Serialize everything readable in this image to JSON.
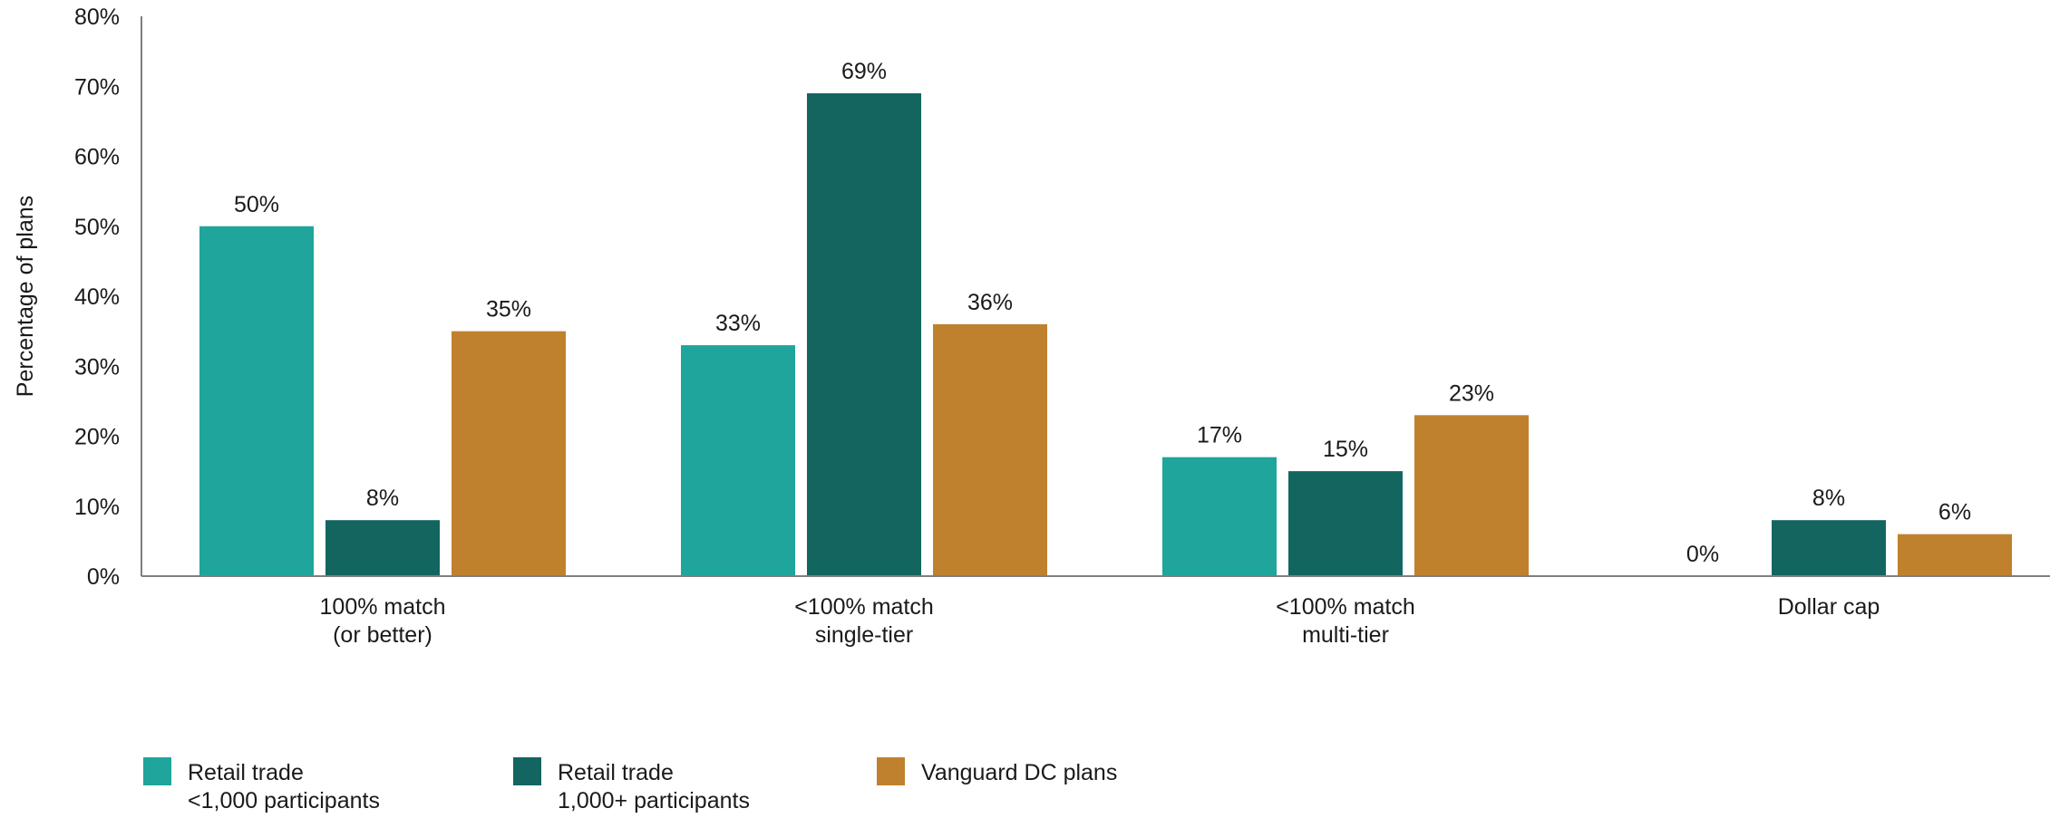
{
  "chart_data": {
    "type": "bar",
    "ylabel": "Percentage of plans",
    "xlabel": "",
    "ylim": [
      0,
      80
    ],
    "yticks": [
      0,
      10,
      20,
      30,
      40,
      50,
      60,
      70,
      80
    ],
    "ytick_labels": [
      "0%",
      "10%",
      "20%",
      "30%",
      "40%",
      "50%",
      "60%",
      "70%",
      "80%"
    ],
    "grid": false,
    "legend_position": "bottom-left",
    "categories": [
      [
        "100% match",
        "(or better)"
      ],
      [
        "<100% match",
        "single-tier"
      ],
      [
        "<100% match",
        "multi-tier"
      ],
      [
        "Dollar cap"
      ]
    ],
    "series": [
      {
        "name": [
          "Retail trade",
          "<1,000 participants"
        ],
        "color": "#1fa59c",
        "values": [
          50,
          33,
          17,
          0
        ],
        "labels": [
          "50%",
          "33%",
          "17%",
          "0%"
        ]
      },
      {
        "name": [
          "Retail trade",
          "1,000+ participants"
        ],
        "color": "#136560",
        "values": [
          8,
          69,
          15,
          8
        ],
        "labels": [
          "8%",
          "69%",
          "15%",
          "8%"
        ]
      },
      {
        "name": [
          "Vanguard DC plans"
        ],
        "color": "#bf812d",
        "values": [
          35,
          36,
          23,
          6
        ],
        "labels": [
          "35%",
          "36%",
          "23%",
          "6%"
        ]
      }
    ]
  }
}
